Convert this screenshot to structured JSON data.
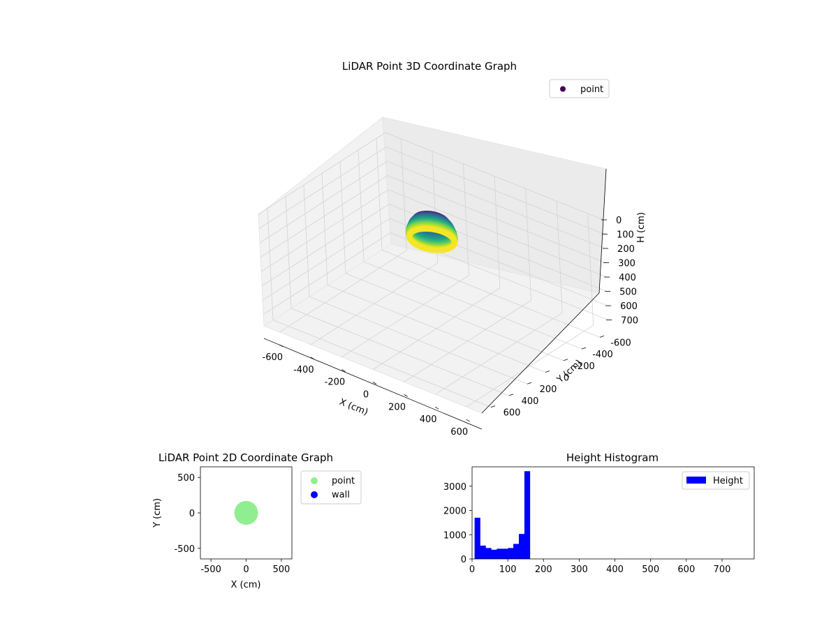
{
  "chart_data": [
    {
      "type": "scatter3d",
      "title": "LiDAR Point 3D Coordinate Graph",
      "xlabel": "X (cm)",
      "ylabel": "Y (cm)",
      "zlabel": "H (cm)",
      "xlim": [
        -700,
        700
      ],
      "ylim": [
        -700,
        700
      ],
      "zlim": [
        0,
        780
      ],
      "z_inverted": true,
      "x_ticks": [
        -600,
        -400,
        -200,
        0,
        200,
        400,
        600
      ],
      "y_ticks": [
        -600,
        -400,
        -200,
        0,
        200,
        400,
        600
      ],
      "z_ticks": [
        0,
        100,
        200,
        300,
        400,
        500,
        600,
        700
      ],
      "colormap": "viridis",
      "legend": {
        "position": "top-right",
        "entries": [
          {
            "label": "point",
            "color": "#440154"
          }
        ]
      },
      "series": [
        {
          "name": "point",
          "shape": "dome",
          "radius_by_height": [
            [
              10,
              25
            ],
            [
              25,
              85
            ],
            [
              60,
              110
            ],
            [
              100,
              125
            ],
            [
              130,
              130
            ],
            [
              160,
              125
            ]
          ]
        }
      ],
      "grid": true
    },
    {
      "type": "scatter",
      "title": "LiDAR Point 2D Coordinate Graph",
      "xlabel": "X (cm)",
      "ylabel": "Y (cm)",
      "xlim": [
        -650,
        650
      ],
      "ylim": [
        -650,
        650
      ],
      "x_ticks": [
        -500,
        0,
        500
      ],
      "y_ticks": [
        -500,
        0,
        500
      ],
      "legend": {
        "position": "outside-right",
        "entries": [
          {
            "label": "point",
            "color": "#90ee90"
          },
          {
            "label": "wall",
            "color": "#0000ff"
          }
        ]
      },
      "series": [
        {
          "name": "point",
          "color": "#90ee90",
          "center": [
            0,
            0
          ],
          "radius": 130
        },
        {
          "name": "wall",
          "color": "#0000ff",
          "count": 0
        }
      ]
    },
    {
      "type": "histogram",
      "title": "Height Histogram",
      "xlabel": "",
      "ylabel": "",
      "xlim": [
        0,
        790
      ],
      "ylim": [
        0,
        3800
      ],
      "x_ticks": [
        0,
        100,
        200,
        300,
        400,
        500,
        600,
        700
      ],
      "y_ticks": [
        0,
        1000,
        2000,
        3000
      ],
      "bin_width": 15.5,
      "bin_start": 7,
      "counts": [
        1700,
        550,
        450,
        380,
        420,
        420,
        450,
        620,
        1030,
        3620
      ],
      "color": "#0000ff",
      "legend": {
        "position": "top-right",
        "entries": [
          {
            "label": "Height",
            "color": "#0000ff"
          }
        ]
      }
    }
  ]
}
